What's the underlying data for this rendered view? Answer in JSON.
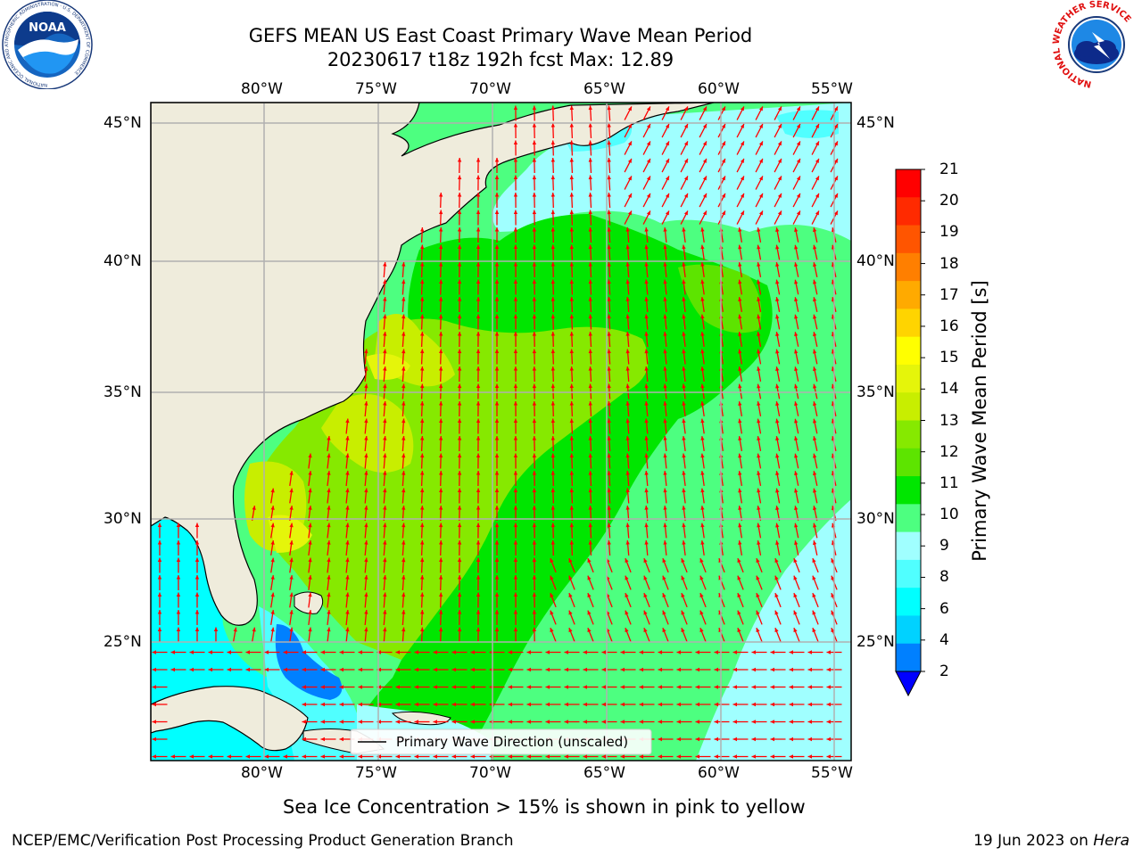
{
  "title_line1": "GEFS MEAN US East Coast Primary Wave Mean Period",
  "title_line2": "20230617 t18z 192h fcst   Max: 12.89",
  "lon_ticks": [
    "80°W",
    "75°W",
    "70°W",
    "65°W",
    "60°W",
    "55°W"
  ],
  "lat_ticks": [
    "45°N",
    "40°N",
    "35°N",
    "30°N",
    "25°N"
  ],
  "colorbar": {
    "label": "Primary Wave Mean Period [s]",
    "ticks": [
      "21",
      "20",
      "19",
      "18",
      "17",
      "16",
      "15",
      "14",
      "13",
      "12",
      "11",
      "10",
      "9",
      "8",
      "6",
      "4",
      "2"
    ],
    "colors": [
      "#ff0000",
      "#ff2a00",
      "#ff5500",
      "#ff7f00",
      "#ffaa00",
      "#ffd400",
      "#ffff00",
      "#e5f50a",
      "#c8ee00",
      "#86e900",
      "#5de400",
      "#00e600",
      "#4dff80",
      "#a0ffff",
      "#50ffff",
      "#00ffff",
      "#00d2ff",
      "#0080ff"
    ],
    "under_color": "#0000ff"
  },
  "legend_text": "Primary Wave Direction (unscaled)",
  "sea_ice_note": "Sea Ice Concentration > 15% is shown in pink to yellow",
  "footer_left": "NCEP/EMC/Verification Post Processing Product Generation Branch",
  "footer_date": "19 Jun 2023 on ",
  "footer_machine": "Hera",
  "logos": {
    "noaa_text": "NOAA",
    "noaa_ring_text": "NATIONAL OCEANIC AND ATMOSPHERIC ADMINISTRATION · U.S. DEPARTMENT OF COMMERCE",
    "nws_ring_text": "NATIONAL WEATHER SERVICE"
  },
  "map_data": {
    "lon_range": [
      -85,
      -54.3
    ],
    "lat_range": [
      20.4,
      46
    ],
    "arrow_color": "#ff0000",
    "land_color": "#efecdc"
  }
}
